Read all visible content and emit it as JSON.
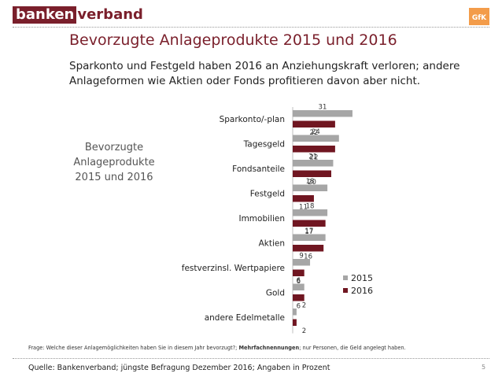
{
  "header": {
    "logo_part1": "banken",
    "logo_part2": "verband",
    "partner_logo_text": "GfK"
  },
  "title": "Bevorzugte Anlageprodukte 2015 und 2016",
  "subtitle": "Sparkonto und Festgeld haben 2016 an Anziehungskraft verloren; andere Anlageformen wie Aktien oder Fonds profitieren davon aber nicht.",
  "side_label": "Bevorzugte Anlageprodukte 2015 und 2016",
  "colors": {
    "brand": "#7a1f2b",
    "series_2015": "#a6a6a6",
    "series_2016": "#701621"
  },
  "chart_data": {
    "type": "bar",
    "orientation": "horizontal",
    "categories": [
      "Sparkonto/-plan",
      "Tagesgeld",
      "Fondsanteile",
      "Festgeld",
      "Immobilien",
      "Aktien",
      "festverzinsl. Wertpapiere",
      "Gold",
      "andere Edelmetalle"
    ],
    "series": [
      {
        "name": "2015",
        "values": [
          31,
          24,
          21,
          18,
          18,
          17,
          9,
          6,
          2
        ]
      },
      {
        "name": "2016",
        "values": [
          22,
          22,
          20,
          11,
          17,
          16,
          6,
          6,
          2
        ]
      }
    ],
    "legend_position": "right",
    "grid": false
  },
  "footer": {
    "question_prefix": "Frage: Welche dieser Anlagemöglichkeiten haben Sie in diesem Jahr bevorzugt?; ",
    "question_bold": "Mehrfachnennungen",
    "question_suffix": "; nur Personen, die Geld angelegt haben.",
    "source": "Quelle: Bankenverband; jüngste Befragung Dezember 2016; Angaben in Prozent",
    "page": "5"
  }
}
